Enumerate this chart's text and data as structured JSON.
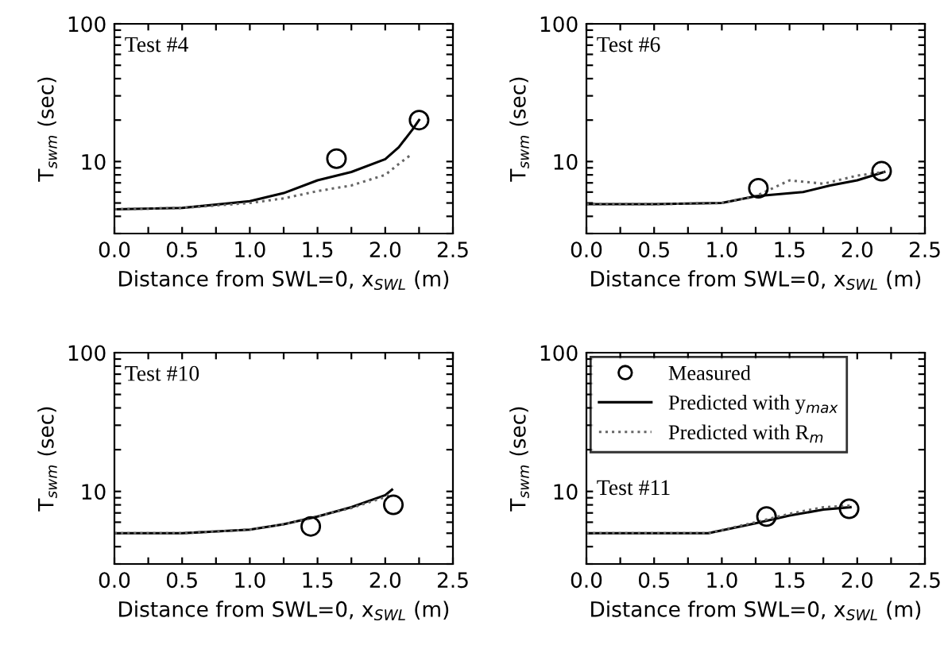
{
  "chart_data": [
    {
      "type": "line",
      "xlabel": "Distance from SWL=0, x$_{SWL}$ (m)",
      "ylabel": "T$_{swm}$ (sec)",
      "annotations": [
        "Test #4"
      ],
      "log": "y",
      "legend": false,
      "xlim": [
        0,
        2.5
      ],
      "ylim": [
        3,
        100
      ],
      "xticks": [
        {
          "value": 0,
          "label": "0.0"
        },
        {
          "value": 0.25,
          "label": null
        },
        {
          "value": 0.5,
          "label": "0.5"
        },
        {
          "value": 0.75,
          "label": null
        },
        {
          "value": 1.0,
          "label": "1.0"
        },
        {
          "value": 1.25,
          "label": null
        },
        {
          "value": 1.5,
          "label": "1.5"
        },
        {
          "value": 1.75,
          "label": null
        },
        {
          "value": 2.0,
          "label": "2.0"
        },
        {
          "value": 2.25,
          "label": null
        },
        {
          "value": 2.5,
          "label": "2.5"
        }
      ],
      "yticks": [
        {
          "value": 3,
          "label": null
        },
        {
          "value": 4,
          "label": null
        },
        {
          "value": 5,
          "label": null
        },
        {
          "value": 6,
          "label": null
        },
        {
          "value": 7,
          "label": null
        },
        {
          "value": 8,
          "label": null
        },
        {
          "value": 9,
          "label": null
        },
        10,
        {
          "value": 20,
          "label": null
        },
        {
          "value": 30,
          "label": null
        },
        {
          "value": 40,
          "label": null
        },
        {
          "value": 50,
          "label": null
        },
        {
          "value": 60,
          "label": null
        },
        {
          "value": 70,
          "label": null
        },
        {
          "value": 80,
          "label": null
        },
        {
          "value": 90,
          "label": null
        },
        100
      ],
      "series": [
        {
          "type": "scatter",
          "marker": "circle",
          "color": "#000000",
          "x": [
            1.64,
            2.25
          ],
          "values": [
            10.5,
            20
          ]
        },
        {
          "line_style": "solid",
          "color": "#000000",
          "x": [
            0,
            0.5,
            1.0,
            1.25,
            1.5,
            1.75,
            2.0,
            2.1,
            2.2,
            2.25
          ],
          "values": [
            4.5,
            4.6,
            5.15,
            5.9,
            7.3,
            8.4,
            10.4,
            12.7,
            17,
            20
          ]
        },
        {
          "line_style": "dotted",
          "color": "#666666",
          "x": [
            0,
            0.5,
            1.0,
            1.25,
            1.5,
            1.75,
            2.0,
            2.1,
            2.2
          ],
          "values": [
            4.5,
            4.6,
            5.0,
            5.4,
            6.1,
            6.7,
            8.0,
            9.6,
            11.4
          ]
        }
      ]
    },
    {
      "type": "line",
      "xlabel": "Distance from SWL=0, x$_{SWL}$ (m)",
      "ylabel": "T$_{swm}$ (sec)",
      "annotations": [
        "Test #6"
      ],
      "log": "y",
      "legend": false,
      "xlim": [
        0,
        2.5
      ],
      "ylim": [
        3,
        100
      ],
      "xticks": [
        {
          "value": 0,
          "label": "0.0"
        },
        {
          "value": 0.25,
          "label": null
        },
        {
          "value": 0.5,
          "label": "0.5"
        },
        {
          "value": 0.75,
          "label": null
        },
        {
          "value": 1.0,
          "label": "1.0"
        },
        {
          "value": 1.25,
          "label": null
        },
        {
          "value": 1.5,
          "label": "1.5"
        },
        {
          "value": 1.75,
          "label": null
        },
        {
          "value": 2.0,
          "label": "2.0"
        },
        {
          "value": 2.25,
          "label": null
        },
        {
          "value": 2.5,
          "label": "2.5"
        }
      ],
      "yticks": [
        {
          "value": 3,
          "label": null
        },
        {
          "value": 4,
          "label": null
        },
        {
          "value": 5,
          "label": null
        },
        {
          "value": 6,
          "label": null
        },
        {
          "value": 7,
          "label": null
        },
        {
          "value": 8,
          "label": null
        },
        {
          "value": 9,
          "label": null
        },
        10,
        {
          "value": 20,
          "label": null
        },
        {
          "value": 30,
          "label": null
        },
        {
          "value": 40,
          "label": null
        },
        {
          "value": 50,
          "label": null
        },
        {
          "value": 60,
          "label": null
        },
        {
          "value": 70,
          "label": null
        },
        {
          "value": 80,
          "label": null
        },
        {
          "value": 90,
          "label": null
        },
        100
      ],
      "series": [
        {
          "type": "scatter",
          "marker": "circle",
          "color": "#000000",
          "x": [
            1.27,
            2.18
          ],
          "values": [
            6.4,
            8.5
          ]
        },
        {
          "line_style": "solid",
          "color": "#000000",
          "x": [
            0,
            0.5,
            1.0,
            1.25,
            1.6,
            1.8,
            2.0,
            2.2
          ],
          "values": [
            4.9,
            4.9,
            5.0,
            5.6,
            6.0,
            6.7,
            7.3,
            8.4
          ]
        },
        {
          "line_style": "dotted",
          "color": "#666666",
          "x": [
            0,
            0.5,
            1.0,
            1.25,
            1.5,
            1.75,
            2.0,
            2.2
          ],
          "values": [
            4.9,
            4.9,
            5.0,
            5.6,
            7.3,
            6.9,
            7.9,
            8.4
          ]
        }
      ]
    },
    {
      "type": "line",
      "xlabel": "Distance from SWL=0, x$_{SWL}$ (m)",
      "ylabel": "T$_{swm}$ (sec)",
      "annotations": [
        "Test #10"
      ],
      "log": "y",
      "legend": false,
      "xlim": [
        0,
        2.5
      ],
      "ylim": [
        3,
        100
      ],
      "xticks": [
        {
          "value": 0,
          "label": "0.0"
        },
        {
          "value": 0.25,
          "label": null
        },
        {
          "value": 0.5,
          "label": "0.5"
        },
        {
          "value": 0.75,
          "label": null
        },
        {
          "value": 1.0,
          "label": "1.0"
        },
        {
          "value": 1.25,
          "label": null
        },
        {
          "value": 1.5,
          "label": "1.5"
        },
        {
          "value": 1.75,
          "label": null
        },
        {
          "value": 2.0,
          "label": "2.0"
        },
        {
          "value": 2.25,
          "label": null
        },
        {
          "value": 2.5,
          "label": "2.5"
        }
      ],
      "yticks": [
        {
          "value": 3,
          "label": null
        },
        {
          "value": 4,
          "label": null
        },
        {
          "value": 5,
          "label": null
        },
        {
          "value": 6,
          "label": null
        },
        {
          "value": 7,
          "label": null
        },
        {
          "value": 8,
          "label": null
        },
        {
          "value": 9,
          "label": null
        },
        10,
        {
          "value": 20,
          "label": null
        },
        {
          "value": 30,
          "label": null
        },
        {
          "value": 40,
          "label": null
        },
        {
          "value": 50,
          "label": null
        },
        {
          "value": 60,
          "label": null
        },
        {
          "value": 70,
          "label": null
        },
        {
          "value": 80,
          "label": null
        },
        {
          "value": 90,
          "label": null
        },
        100
      ],
      "series": [
        {
          "type": "scatter",
          "marker": "circle",
          "color": "#000000",
          "x": [
            1.45,
            2.06
          ],
          "values": [
            5.6,
            8.0
          ]
        },
        {
          "line_style": "solid",
          "color": "#000000",
          "x": [
            0,
            0.5,
            1.0,
            1.25,
            1.5,
            1.75,
            2.0,
            2.05
          ],
          "values": [
            5.0,
            5.0,
            5.3,
            5.8,
            6.6,
            7.7,
            9.4,
            10.3
          ]
        },
        {
          "line_style": "dotted",
          "color": "#666666",
          "x": [
            0,
            0.5,
            1.0,
            1.25,
            1.5,
            1.75,
            2.0,
            2.05
          ],
          "values": [
            5.0,
            5.0,
            5.3,
            5.8,
            6.6,
            7.6,
            9.1,
            9.8
          ]
        }
      ]
    },
    {
      "type": "line",
      "xlabel": "Distance from SWL=0, x$_{SWL}$ (m)",
      "ylabel": "T$_{swm}$ (sec)",
      "annotations": [
        "Test #11"
      ],
      "log": "y",
      "legend": "top left",
      "xlim": [
        0,
        2.5
      ],
      "ylim": [
        3,
        100
      ],
      "xticks": [
        {
          "value": 0,
          "label": "0.0"
        },
        {
          "value": 0.25,
          "label": null
        },
        {
          "value": 0.5,
          "label": "0.5"
        },
        {
          "value": 0.75,
          "label": null
        },
        {
          "value": 1.0,
          "label": "1.0"
        },
        {
          "value": 1.25,
          "label": null
        },
        {
          "value": 1.5,
          "label": "1.5"
        },
        {
          "value": 1.75,
          "label": null
        },
        {
          "value": 2.0,
          "label": "2.0"
        },
        {
          "value": 2.25,
          "label": null
        },
        {
          "value": 2.5,
          "label": "2.5"
        }
      ],
      "yticks": [
        {
          "value": 3,
          "label": null
        },
        {
          "value": 4,
          "label": null
        },
        {
          "value": 5,
          "label": null
        },
        {
          "value": 6,
          "label": null
        },
        {
          "value": 7,
          "label": null
        },
        {
          "value": 8,
          "label": null
        },
        {
          "value": 9,
          "label": null
        },
        10,
        {
          "value": 20,
          "label": null
        },
        {
          "value": 30,
          "label": null
        },
        {
          "value": 40,
          "label": null
        },
        {
          "value": 50,
          "label": null
        },
        {
          "value": 60,
          "label": null
        },
        {
          "value": 70,
          "label": null
        },
        {
          "value": 80,
          "label": null
        },
        {
          "value": 90,
          "label": null
        },
        100
      ],
      "series": [
        {
          "name": "Measured",
          "type": "scatter",
          "marker": "circle",
          "color": "#000000",
          "x": [
            1.33,
            1.94
          ],
          "values": [
            6.6,
            7.5
          ]
        },
        {
          "name": "Predicted with y$_{max}$",
          "line_style": "solid",
          "color": "#000000",
          "x": [
            0,
            0.5,
            0.9,
            1.25,
            1.5,
            1.75,
            1.95
          ],
          "values": [
            5.0,
            5.0,
            5.0,
            5.9,
            6.7,
            7.4,
            7.7
          ]
        },
        {
          "name": "Predicted with R$_{m}$",
          "line_style": "dotted",
          "color": "#666666",
          "x": [
            0,
            0.5,
            0.9,
            1.25,
            1.5,
            1.75,
            1.95
          ],
          "values": [
            5.0,
            5.0,
            5.0,
            6.0,
            6.9,
            7.7,
            7.9
          ]
        }
      ]
    }
  ]
}
